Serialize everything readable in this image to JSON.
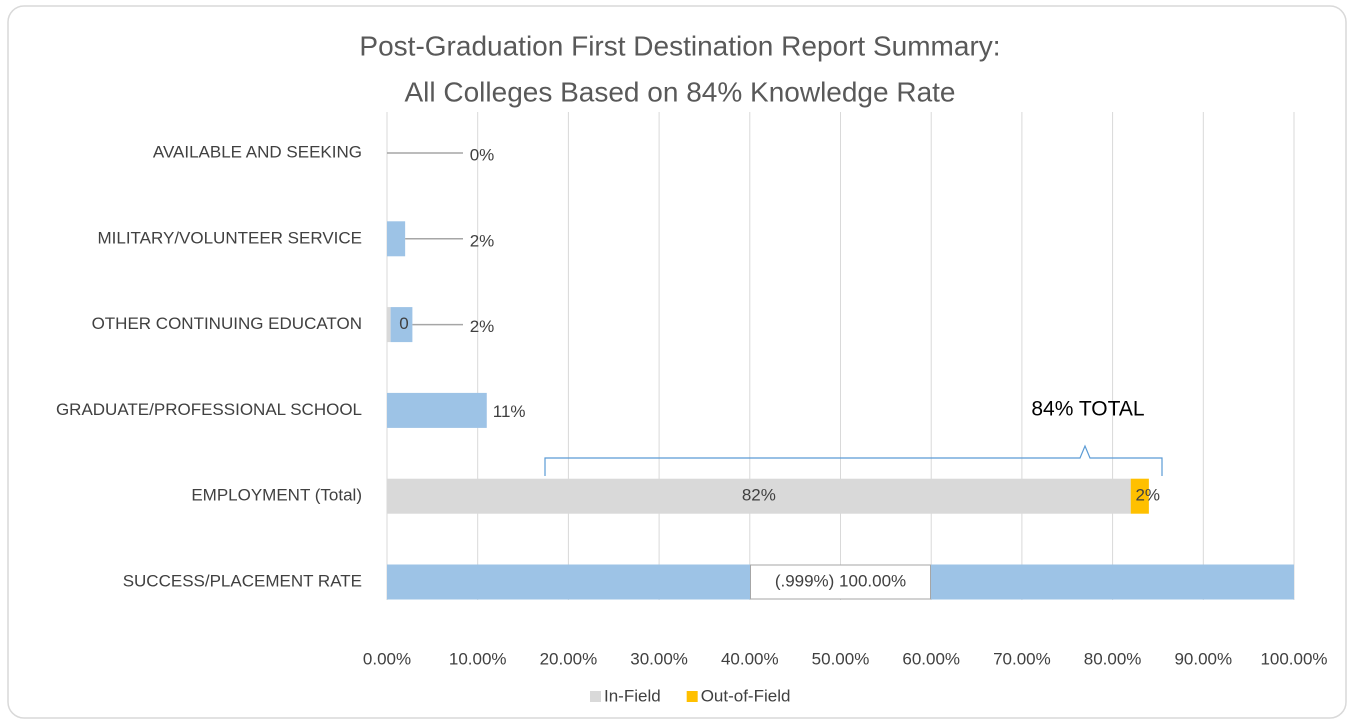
{
  "chart_data": {
    "type": "stacked_bar_horizontal",
    "title": [
      "Post-Graduation First Destination Report Summary:",
      "All Colleges Based on 84% Knowledge Rate"
    ],
    "categories": [
      "AVAILABLE AND SEEKING",
      "MILITARY/VOLUNTEER SERVICE",
      "OTHER CONTINUING EDUCATON",
      "GRADUATE/PROFESSIONAL SCHOOL",
      "EMPLOYMENT (Total)",
      "SUCCESS/PLACEMENT RATE"
    ],
    "series": [
      {
        "name": "In-Field",
        "color": "#d9d9d9",
        "values": [
          null,
          null,
          0.4,
          null,
          82,
          null
        ],
        "value_labels": [
          null,
          null,
          "0",
          null,
          "82%",
          null
        ]
      },
      {
        "name": "Out-of-Field",
        "color": "#ffc000",
        "values": [
          null,
          null,
          null,
          null,
          2,
          null
        ],
        "value_labels": [
          null,
          null,
          null,
          null,
          "2%",
          null
        ]
      },
      {
        "color": "#9dc3e6",
        "values": [
          0,
          2,
          2.4,
          11,
          null,
          100
        ],
        "value_labels": [
          "0%",
          "2%",
          "2%",
          "11%",
          null,
          "(.999%) 100.00%"
        ]
      }
    ],
    "xlim": [
      0,
      100
    ],
    "xticks": [
      {
        "value": 0,
        "label": "0.00%"
      },
      {
        "value": 10,
        "label": "10.00%"
      },
      {
        "value": 20,
        "label": "20.00%"
      },
      {
        "value": 30,
        "label": "30.00%"
      },
      {
        "value": 40,
        "label": "40.00%"
      },
      {
        "value": 50,
        "label": "50.00%"
      },
      {
        "value": 60,
        "label": "60.00%"
      },
      {
        "value": 70,
        "label": "70.00%"
      },
      {
        "value": 80,
        "label": "80.00%"
      },
      {
        "value": 90,
        "label": "90.00%"
      },
      {
        "value": 100,
        "label": "100.00%"
      }
    ],
    "grid": true,
    "legend": "bottom",
    "annotation": "84% TOTAL"
  }
}
